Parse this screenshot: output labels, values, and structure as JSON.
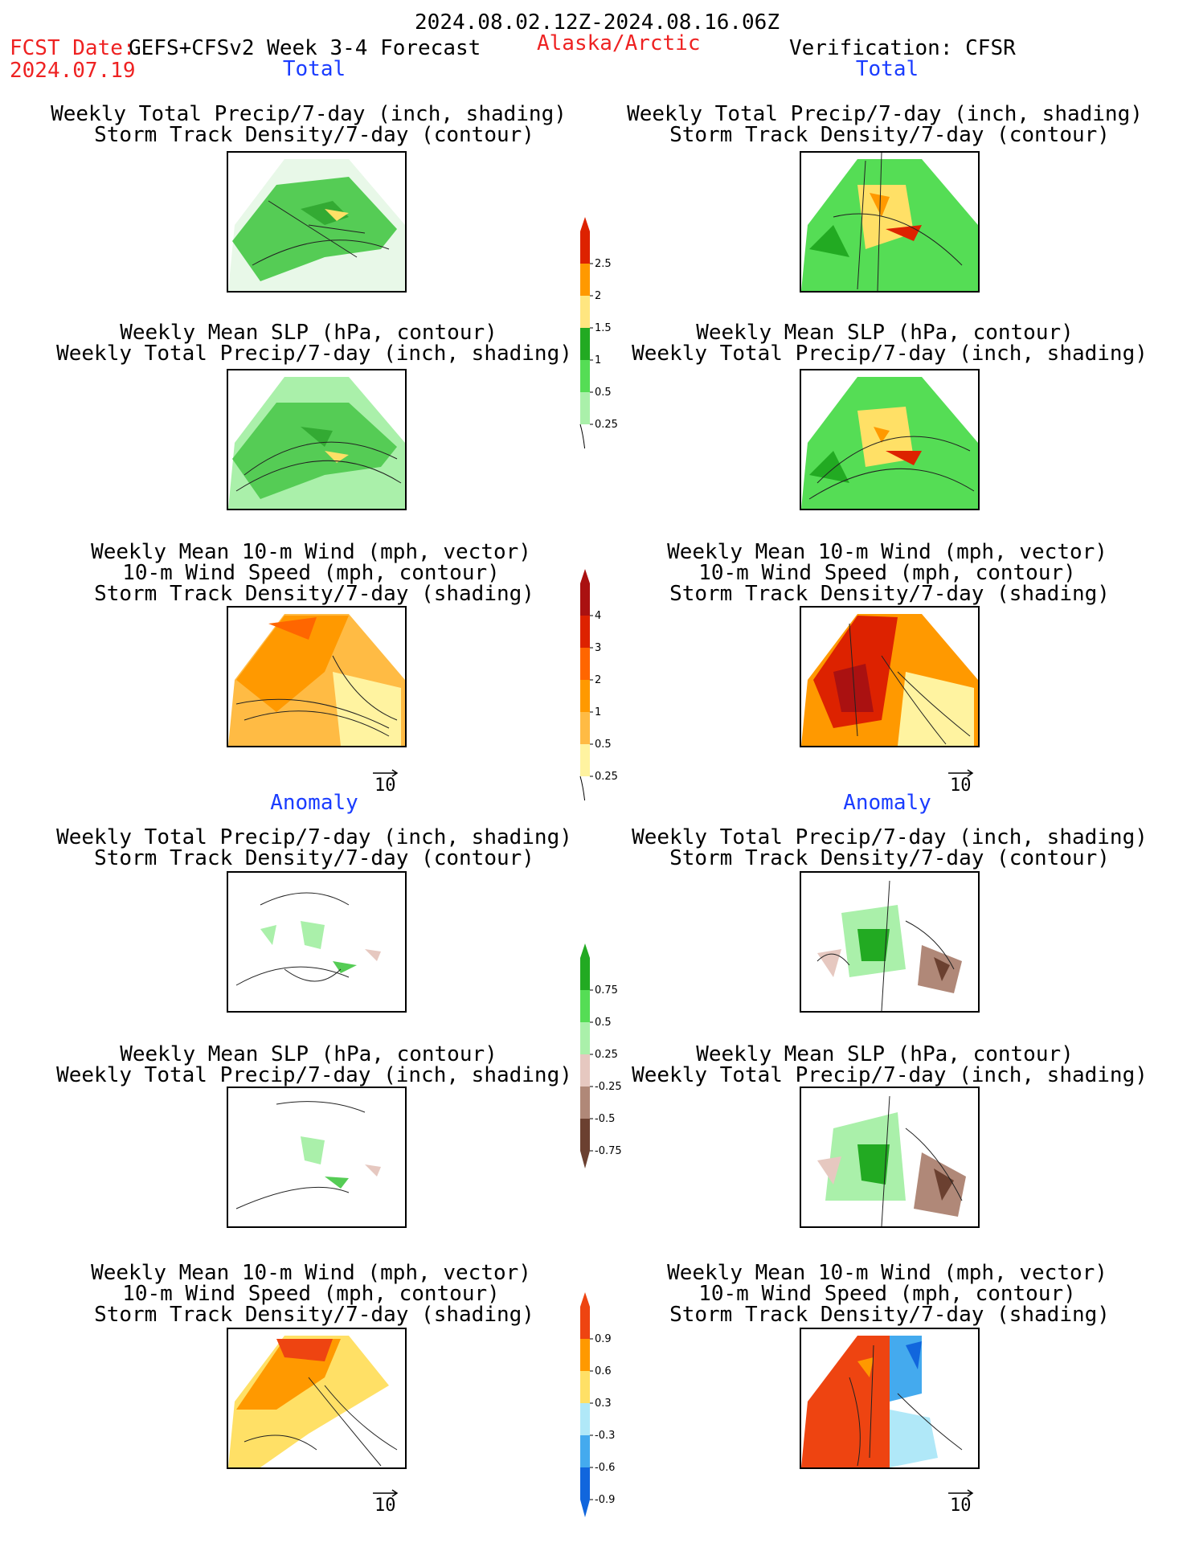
{
  "header": {
    "period": "2024.08.02.12Z-2024.08.16.06Z",
    "fcst_label": "FCST Date:",
    "model": "GEFS+CFSv2 Week 3-4 Forecast",
    "region": "Alaska/Arctic",
    "verification": "Verification: CFSR",
    "fcst_date": "2024.07.19"
  },
  "sections": {
    "total": "Total",
    "anomaly": "Anomaly"
  },
  "titles": {
    "precip_storm": [
      "Weekly Total Precip/7-day (inch, shading)",
      "Storm Track Density/7-day (contour)"
    ],
    "slp_precip": [
      "Weekly Mean SLP (hPa, contour)",
      "Weekly Total Precip/7-day (inch, shading)"
    ],
    "wind_storm": [
      "Weekly Mean 10-m Wind (mph, vector)",
      "10-m Wind Speed (mph, contour)",
      "Storm Track Density/7-day (shading)"
    ]
  },
  "vector_ref": "10",
  "colorbars": {
    "precip_total": {
      "labels": [
        "2.5",
        "2",
        "1.5",
        "1",
        "0.5",
        "0.25"
      ],
      "colors": [
        "#dd2200",
        "#ff9900",
        "#ffe680",
        "#22aa22",
        "#55dd55",
        "#aaf0aa"
      ]
    },
    "storm_total": {
      "labels": [
        "4",
        "3",
        "2",
        "1",
        "0.5",
        "0.25"
      ],
      "colors": [
        "#aa1111",
        "#dd2200",
        "#ff6600",
        "#ff9900",
        "#ffbb44",
        "#fff3a0"
      ]
    },
    "precip_anom": {
      "labels": [
        "0.75",
        "0.5",
        "0.25",
        "-0.25",
        "-0.5",
        "-0.75"
      ],
      "colors": [
        "#22aa22",
        "#55dd55",
        "#aaf0aa",
        "#e6c8c0",
        "#b08878",
        "#6b4030"
      ]
    },
    "storm_anom": {
      "labels": [
        "0.9",
        "0.6",
        "0.3",
        "-0.3",
        "-0.6",
        "-0.9"
      ],
      "colors": [
        "#ee4411",
        "#ff9900",
        "#ffe066",
        "#b0e8f8",
        "#44aaee",
        "#1166dd"
      ]
    }
  }
}
